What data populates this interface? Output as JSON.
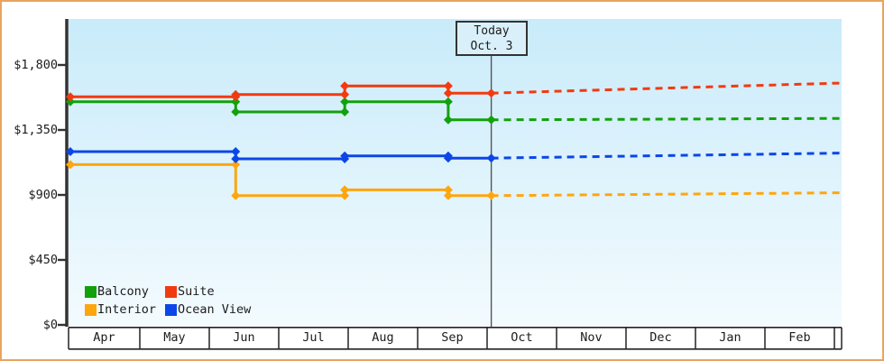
{
  "page": {
    "border_color": "#e9a45f",
    "background": "#ffffff",
    "axis_color": "#333333",
    "table_line_color": "#222222",
    "today_line_color": "#555555"
  },
  "chart_data": {
    "type": "line",
    "title": "",
    "x_axis": {
      "tick_labels": [
        "Apr",
        "May",
        "Jun",
        "Jul",
        "Aug",
        "Sep",
        "Oct",
        "Nov",
        "Dec",
        "Jan",
        "Feb"
      ],
      "unit": "month",
      "x_range_months_after_apr_1": [
        0,
        11.1
      ]
    },
    "y_axis": {
      "tick_labels": [
        "$0",
        "$450",
        "$900",
        "$1,350",
        "$1,800"
      ],
      "tick_values": [
        0,
        450,
        900,
        1350,
        1800
      ],
      "ylim": [
        0,
        2120
      ],
      "grid": false
    },
    "today": {
      "label": "Today",
      "date": "Oct. 3",
      "x_months": 6.06
    },
    "legend_rows": [
      [
        "Balcony",
        "Suite"
      ],
      [
        "Interior",
        "Ocean View"
      ]
    ],
    "plot_gradient_top": "#c9ebfa",
    "plot_gradient_bottom": "#f3fbfe",
    "series": [
      {
        "name": "Interior",
        "color": "#ffa60d",
        "solid_points": [
          [
            0,
            1110
          ],
          [
            2.38,
            1110
          ],
          [
            2.38,
            895
          ],
          [
            3.95,
            895
          ],
          [
            3.95,
            935
          ],
          [
            5.44,
            935
          ],
          [
            5.44,
            895
          ],
          [
            6.06,
            895
          ]
        ],
        "projection_points": [
          [
            6.06,
            895
          ],
          [
            11.1,
            915
          ]
        ]
      },
      {
        "name": "Ocean View",
        "color": "#0c46e8",
        "solid_points": [
          [
            0,
            1200
          ],
          [
            2.38,
            1200
          ],
          [
            2.38,
            1150
          ],
          [
            3.95,
            1150
          ],
          [
            3.95,
            1170
          ],
          [
            5.44,
            1170
          ],
          [
            5.44,
            1155
          ],
          [
            6.06,
            1155
          ]
        ],
        "projection_points": [
          [
            6.06,
            1155
          ],
          [
            11.1,
            1190
          ]
        ]
      },
      {
        "name": "Balcony",
        "color": "#12a10b",
        "solid_points": [
          [
            0,
            1545
          ],
          [
            2.38,
            1545
          ],
          [
            2.38,
            1475
          ],
          [
            3.95,
            1475
          ],
          [
            3.95,
            1545
          ],
          [
            5.44,
            1545
          ],
          [
            5.44,
            1420
          ],
          [
            6.06,
            1420
          ]
        ],
        "projection_points": [
          [
            6.06,
            1420
          ],
          [
            11.1,
            1430
          ]
        ]
      },
      {
        "name": "Suite",
        "color": "#f23a10",
        "solid_points": [
          [
            0,
            1580
          ],
          [
            2.38,
            1580
          ],
          [
            2.38,
            1595
          ],
          [
            3.95,
            1595
          ],
          [
            3.95,
            1655
          ],
          [
            5.44,
            1655
          ],
          [
            5.44,
            1605
          ],
          [
            6.06,
            1605
          ]
        ],
        "projection_points": [
          [
            6.06,
            1605
          ],
          [
            11.1,
            1675
          ]
        ]
      }
    ]
  }
}
